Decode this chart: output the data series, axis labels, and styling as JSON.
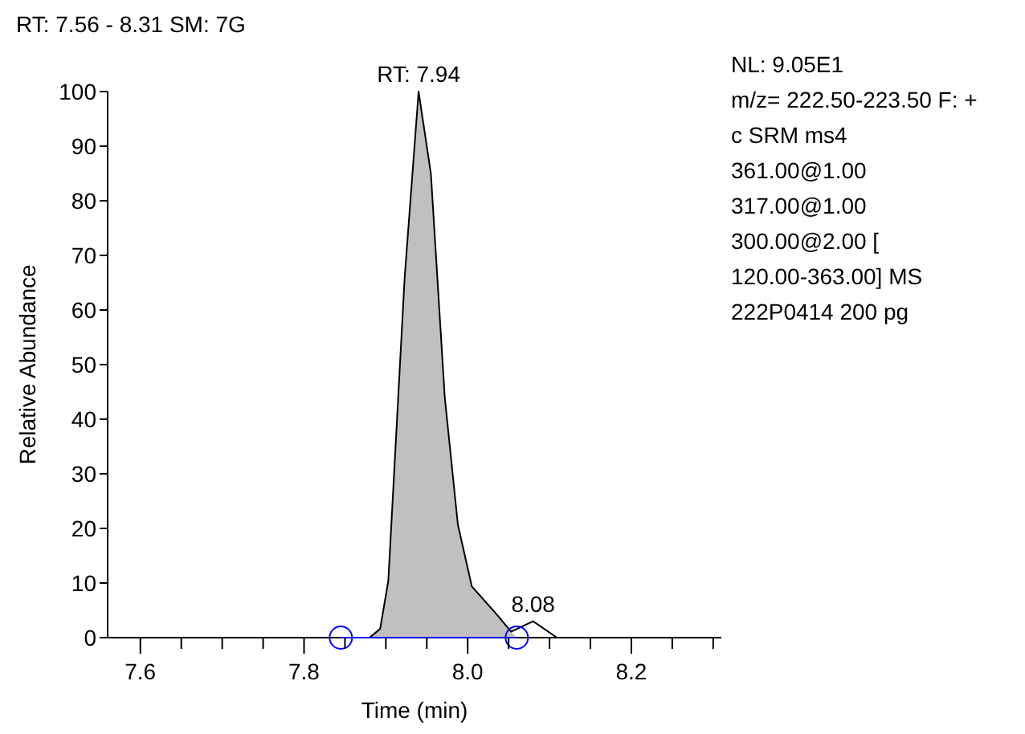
{
  "chart_data": {
    "type": "line",
    "title": "RT: 7.56 - 8.31   SM: 7G",
    "xlabel": "Time (min)",
    "ylabel": "Relative Abundance",
    "xlim": [
      7.56,
      8.31
    ],
    "xticks": [
      {
        "value": 7.6,
        "label": "7.6"
      },
      {
        "value": 7.65,
        "label": null
      },
      {
        "value": 7.7,
        "label": null
      },
      {
        "value": 7.75,
        "label": null
      },
      {
        "value": 7.8,
        "label": "7.8"
      },
      {
        "value": 7.85,
        "label": null
      },
      {
        "value": 7.9,
        "label": null
      },
      {
        "value": 7.95,
        "label": null
      },
      {
        "value": 8.0,
        "label": "8.0"
      },
      {
        "value": 8.05,
        "label": null
      },
      {
        "value": 8.1,
        "label": null
      },
      {
        "value": 8.15,
        "label": null
      },
      {
        "value": 8.2,
        "label": "8.2"
      },
      {
        "value": 8.25,
        "label": null
      },
      {
        "value": 8.3,
        "label": null
      }
    ],
    "ylim": [
      0,
      100
    ],
    "yticks": [
      0,
      10,
      20,
      30,
      40,
      50,
      60,
      70,
      80,
      90,
      100
    ],
    "grid": false,
    "series": [
      {
        "type": "area",
        "color": "#c0c0c0",
        "x": [
          7.88,
          7.893,
          7.903,
          7.923,
          7.94,
          7.955,
          7.972,
          7.988,
          8.005,
          8.037,
          8.053,
          8.06
        ],
        "values": [
          0,
          1.6,
          10.4,
          66,
          100,
          85,
          44,
          20.7,
          9.4,
          4,
          1.1,
          0
        ]
      },
      {
        "color": "#000000",
        "x": [
          7.56,
          7.88,
          7.893,
          7.903,
          7.923,
          7.94,
          7.955,
          7.972,
          7.988,
          8.005,
          8.037,
          8.053,
          8.08,
          8.109,
          8.31
        ],
        "values": [
          0,
          0,
          1.6,
          10.4,
          66,
          100,
          85,
          44,
          20.7,
          9.4,
          4,
          1.1,
          3,
          0,
          0
        ]
      },
      {
        "color": "#0000ff",
        "x": [
          7.845,
          8.06
        ],
        "values": [
          0,
          0
        ]
      },
      {
        "type": "scatter",
        "color": "#0000ff",
        "marker": "circle",
        "x": [
          7.845,
          8.06
        ],
        "values": [
          0,
          0
        ]
      }
    ],
    "annotations": [
      {
        "text": "RT: 7.94",
        "x": 7.94,
        "y": 100
      },
      {
        "text": "8.08",
        "x": 8.08,
        "y": 3
      },
      "NL: 9.05E1",
      "m/z= 222.50-223.50 F: +",
      "c SRM ms4",
      "361.00@1.00",
      "317.00@1.00",
      "300.00@2.00 [",
      "120.00-363.00]  MS",
      "222P0414   200 pg"
    ]
  }
}
